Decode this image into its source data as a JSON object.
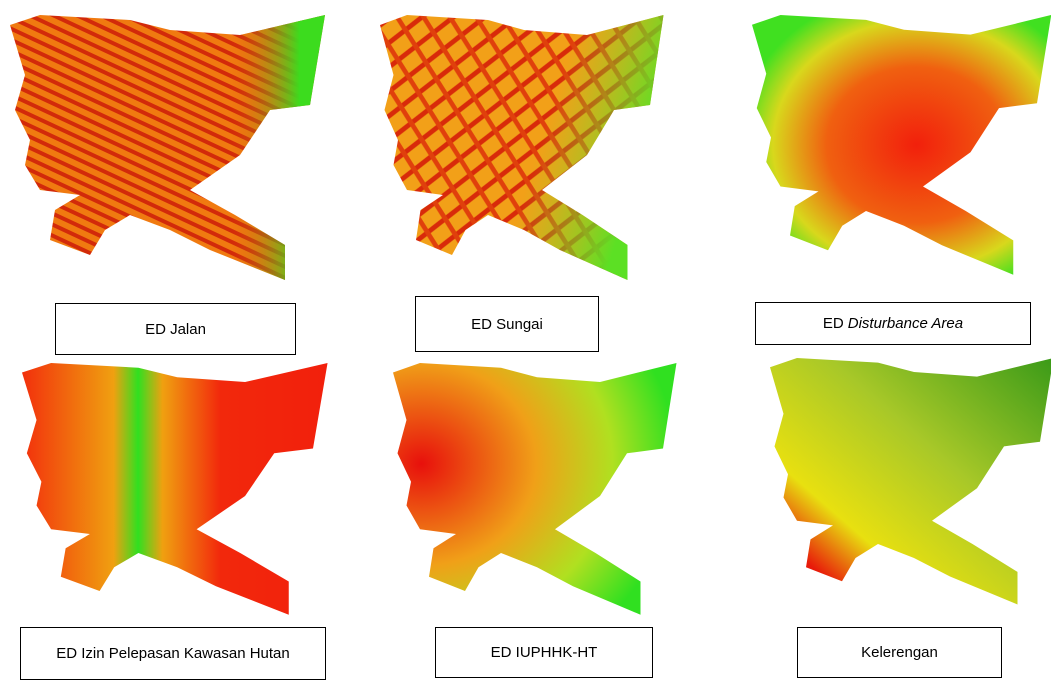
{
  "panels": [
    {
      "label": "ED Jalan"
    },
    {
      "label": "ED Sungai"
    },
    {
      "label_prefix": "ED",
      "label_italic": "Disturbance Area"
    },
    {
      "label": "ED Izin Pelepasan Kawasan Hutan"
    },
    {
      "label": "ED IUPHHK-HT"
    },
    {
      "label": "Kelerengan"
    }
  ]
}
